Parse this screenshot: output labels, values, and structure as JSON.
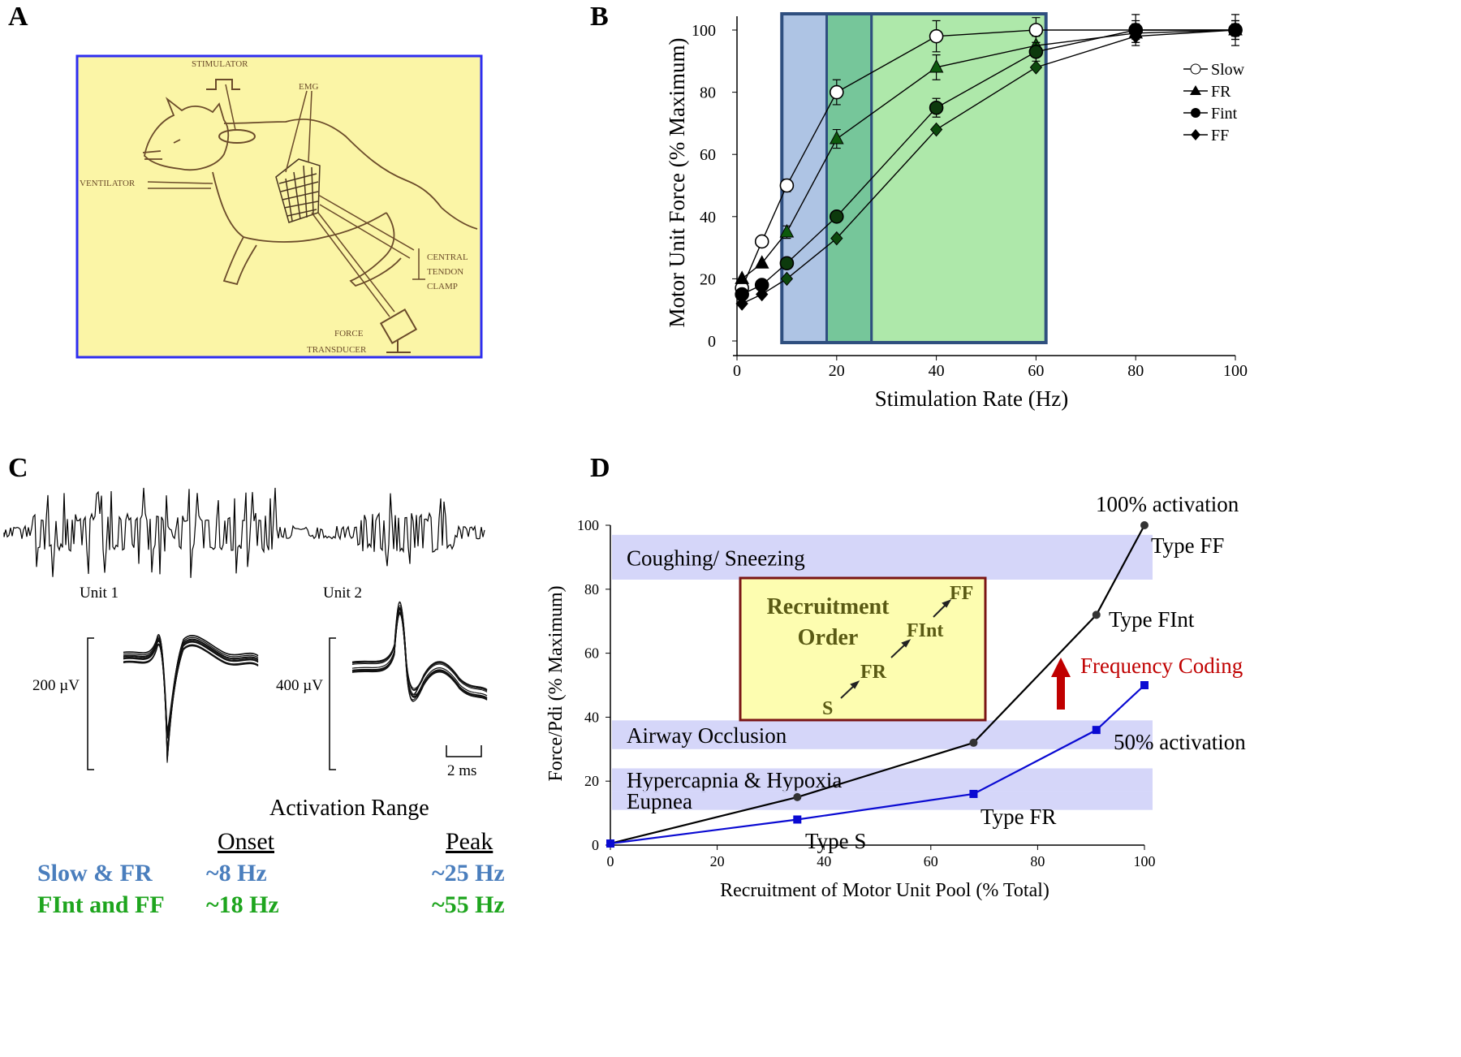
{
  "panels": {
    "a": "A",
    "b": "B",
    "c": "C",
    "d": "D"
  },
  "panel_a": {
    "labels": {
      "stimulator": "STIMULATOR",
      "emg": "EMG",
      "ventilator": "VENTILATOR",
      "central": "CENTRAL",
      "tendon": "TENDON",
      "clamp": "CLAMP",
      "force": "FORCE",
      "transducer": "TRANSDUCER"
    },
    "colors": {
      "background": "#fbf5a6",
      "border": "#2e2ef0",
      "ink": "#6b4b2a"
    }
  },
  "chart_data": [
    {
      "id": "B",
      "type": "line",
      "xlabel": "Stimulation Rate (Hz)",
      "ylabel": "Motor Unit Force (% Maximum)",
      "xlim": [
        0,
        100
      ],
      "ylim": [
        0,
        100
      ],
      "xticks": [
        0,
        20,
        40,
        60,
        80,
        100
      ],
      "yticks": [
        0,
        20,
        40,
        60,
        80,
        100
      ],
      "legend": {
        "position": "right",
        "entries": [
          "Slow",
          "FR",
          "Fint",
          "FF"
        ]
      },
      "shaded_regions": [
        {
          "x0": 9,
          "x1": 18,
          "color": "#aec4e4"
        },
        {
          "x0": 18,
          "x1": 27,
          "color": "#76c69a"
        },
        {
          "x0": 27,
          "x1": 62,
          "color": "#aee8aa"
        }
      ],
      "region_border": "#2f4f7f",
      "series": [
        {
          "name": "Slow",
          "marker": "open-circle",
          "x": [
            1,
            5,
            10,
            20,
            40,
            60,
            80,
            100
          ],
          "values": [
            17,
            32,
            50,
            80,
            98,
            100,
            100,
            100
          ],
          "err": [
            0,
            0,
            2,
            4,
            5,
            4,
            5,
            5
          ]
        },
        {
          "name": "FR",
          "marker": "triangle",
          "x": [
            1,
            5,
            10,
            20,
            40,
            60,
            80,
            100
          ],
          "values": [
            20,
            25,
            35,
            65,
            88,
            95,
            99,
            100
          ],
          "err": [
            0,
            0,
            2,
            3,
            4,
            3,
            3,
            3
          ]
        },
        {
          "name": "Fint",
          "marker": "circle",
          "x": [
            1,
            5,
            10,
            20,
            40,
            60,
            80,
            100
          ],
          "values": [
            15,
            18,
            25,
            40,
            75,
            93,
            100,
            100
          ],
          "err": [
            0,
            0,
            0,
            0,
            3,
            3,
            3,
            3
          ]
        },
        {
          "name": "FF",
          "marker": "diamond",
          "x": [
            1,
            5,
            10,
            20,
            40,
            60,
            80,
            100
          ],
          "values": [
            12,
            15,
            20,
            33,
            68,
            88,
            98,
            100
          ],
          "err": [
            0,
            0,
            0,
            0,
            0,
            0,
            2,
            2
          ]
        }
      ]
    },
    {
      "id": "D",
      "type": "line",
      "xlabel": "Recruitment of Motor Unit Pool (% Total)",
      "ylabel": "Force/Pdi (% Maximum)",
      "xlim": [
        0,
        100
      ],
      "ylim": [
        0,
        100
      ],
      "xticks": [
        0,
        20,
        40,
        60,
        80,
        100
      ],
      "yticks": [
        0,
        20,
        40,
        60,
        80,
        100
      ],
      "bands": [
        {
          "label": "Coughing/ Sneezing",
          "y0": 83,
          "y1": 97
        },
        {
          "label": "Airway Occlusion",
          "y0": 30,
          "y1": 39
        },
        {
          "label": "Hypercapnia & Hypoxia",
          "y0": 17,
          "y1": 24
        },
        {
          "label": "Eupnea",
          "y0": 11,
          "y1": 17
        }
      ],
      "series": [
        {
          "name": "100% activation",
          "x": [
            0,
            35,
            68,
            91,
            100
          ],
          "values": [
            0.5,
            15,
            32,
            72,
            100
          ],
          "color": "#000000"
        },
        {
          "name": "50% activation",
          "x": [
            0,
            35,
            68,
            91,
            100
          ],
          "values": [
            0.5,
            8,
            16,
            36,
            50
          ],
          "color": "#0a0ad2"
        }
      ],
      "annotations": {
        "act100": "100% activation",
        "act50": "50% activation",
        "type_ff": "Type FF",
        "type_fint": "Type FInt",
        "type_fr": "Type FR",
        "type_s": "Type S",
        "freq_coding": "Frequency Coding"
      },
      "recruitment_box": {
        "title_1": "Recruitment",
        "title_2": "Order",
        "s": "S",
        "fr": "FR",
        "fint": "FInt",
        "ff": "FF",
        "background": "#fdfdb0",
        "border": "#7a1515"
      }
    }
  ],
  "panel_c": {
    "unit1": "Unit 1",
    "unit2": "Unit 2",
    "scale1": "200 µV",
    "scale2": "400 µV",
    "time_scale": "2 ms",
    "activation_title": "Activation Range",
    "onset_header": "Onset",
    "peak_header": "Peak",
    "rows": [
      {
        "label": "Slow & FR",
        "onset": "~8 Hz",
        "peak": "~25 Hz",
        "color": "#4a7ebd"
      },
      {
        "label": "FInt and FF",
        "onset": "~18 Hz",
        "peak": "~55 Hz",
        "color": "#1ea51e"
      }
    ]
  }
}
